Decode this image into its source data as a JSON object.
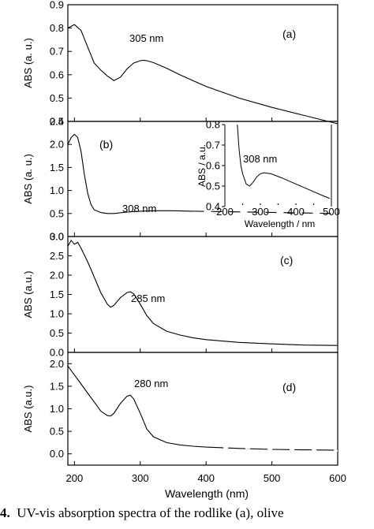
{
  "figure": {
    "x_axis_label": "Wavelength (nm)",
    "x_ticks": [
      "200",
      "300",
      "400",
      "500",
      "600"
    ],
    "caption_number": "4.",
    "caption_text": "UV-vis absorption spectra of the rodlike (a), olive"
  },
  "chart_data": [
    {
      "type": "line",
      "panel_label": "(a)",
      "ylabel": "ABS (a. u.)",
      "xlim": [
        190,
        600
      ],
      "ylim": [
        0.4,
        0.9
      ],
      "yticks": [
        "0.4",
        "0.5",
        "0.6",
        "0.7",
        "0.8",
        "0.9"
      ],
      "annotation": "305 nm",
      "x": [
        190,
        200,
        210,
        220,
        230,
        240,
        250,
        260,
        270,
        280,
        290,
        300,
        305,
        310,
        320,
        340,
        360,
        380,
        400,
        450,
        500,
        550,
        600
      ],
      "y": [
        0.8,
        0.815,
        0.79,
        0.72,
        0.65,
        0.62,
        0.595,
        0.575,
        0.59,
        0.625,
        0.65,
        0.66,
        0.662,
        0.66,
        0.652,
        0.628,
        0.6,
        0.575,
        0.55,
        0.5,
        0.46,
        0.425,
        0.39
      ]
    },
    {
      "type": "line",
      "panel_label": "(b)",
      "ylabel": "ABS (a. u.)",
      "xlim": [
        190,
        600
      ],
      "ylim": [
        0.0,
        2.5
      ],
      "yticks": [
        "0.0",
        "0.5",
        "1.0",
        "1.5",
        "2.0",
        "2.5"
      ],
      "annotation": "308 nm",
      "x": [
        190,
        195,
        200,
        205,
        210,
        215,
        220,
        225,
        230,
        240,
        250,
        260,
        280,
        300,
        320,
        350,
        380
      ],
      "y": [
        2.0,
        2.15,
        2.22,
        2.15,
        1.85,
        1.35,
        0.95,
        0.7,
        0.58,
        0.52,
        0.5,
        0.5,
        0.53,
        0.55,
        0.56,
        0.56,
        0.55
      ],
      "inset": {
        "type": "line",
        "ylabel": "ABS / a.u.",
        "xlabel": "Wavelength / nm",
        "xlim": [
          200,
          500
        ],
        "ylim": [
          0.4,
          0.8
        ],
        "xticks": [
          "200",
          "300",
          "400",
          "500"
        ],
        "yticks": [
          "0.4",
          "0.5",
          "0.6",
          "0.7",
          "0.8"
        ],
        "annotation": "308 nm",
        "x": [
          235,
          240,
          245,
          250,
          260,
          270,
          280,
          290,
          300,
          310,
          330,
          360,
          400,
          440,
          480,
          495
        ],
        "y": [
          0.8,
          0.68,
          0.6,
          0.56,
          0.51,
          0.5,
          0.52,
          0.545,
          0.56,
          0.565,
          0.56,
          0.54,
          0.51,
          0.48,
          0.45,
          0.44
        ]
      }
    },
    {
      "type": "line",
      "panel_label": "(c)",
      "ylabel": "ABS (a.u.)",
      "xlim": [
        190,
        600
      ],
      "ylim": [
        0.0,
        3.0
      ],
      "yticks": [
        "0.0",
        "0.5",
        "1.0",
        "1.5",
        "2.0",
        "2.5",
        "3.0"
      ],
      "annotation": "285 nm",
      "x": [
        190,
        195,
        200,
        205,
        210,
        220,
        230,
        240,
        250,
        255,
        260,
        270,
        280,
        285,
        290,
        300,
        310,
        320,
        340,
        360,
        380,
        400,
        450,
        500,
        550,
        600
      ],
      "y": [
        2.75,
        2.9,
        2.8,
        2.85,
        2.7,
        2.35,
        1.95,
        1.55,
        1.25,
        1.17,
        1.22,
        1.42,
        1.55,
        1.57,
        1.52,
        1.25,
        0.95,
        0.75,
        0.55,
        0.45,
        0.38,
        0.33,
        0.26,
        0.22,
        0.19,
        0.18
      ]
    },
    {
      "type": "line",
      "panel_label": "(d)",
      "ylabel": "ABS (a.u.)",
      "xlim": [
        190,
        600
      ],
      "ylim": [
        -0.25,
        2.25
      ],
      "yticks": [
        "0.0",
        "0.5",
        "1.0",
        "1.5",
        "2.0"
      ],
      "annotation": "280 nm",
      "x": [
        190,
        200,
        210,
        220,
        230,
        240,
        250,
        255,
        260,
        270,
        280,
        285,
        290,
        300,
        310,
        320,
        340,
        360,
        380,
        400,
        450,
        500,
        550,
        600
      ],
      "y": [
        1.95,
        1.75,
        1.55,
        1.35,
        1.15,
        0.95,
        0.85,
        0.84,
        0.9,
        1.12,
        1.28,
        1.3,
        1.22,
        0.9,
        0.55,
        0.38,
        0.25,
        0.2,
        0.17,
        0.15,
        0.12,
        0.1,
        0.09,
        0.08
      ]
    }
  ]
}
